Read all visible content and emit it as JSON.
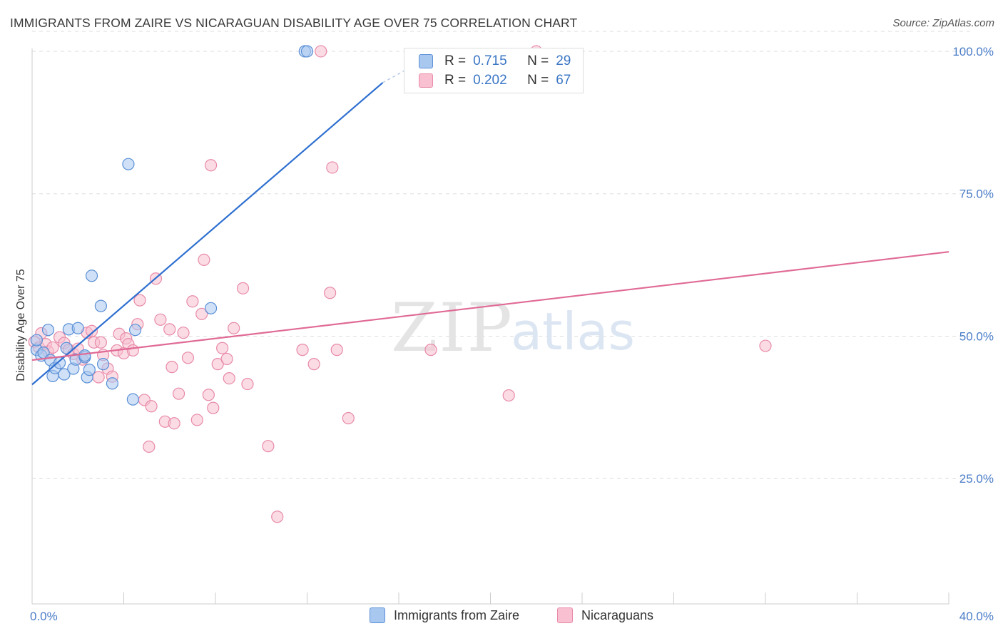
{
  "header": {
    "title": "IMMIGRANTS FROM ZAIRE VS NICARAGUAN DISABILITY AGE OVER 75 CORRELATION CHART",
    "source": "Source: ZipAtlas.com"
  },
  "legend": {
    "r_label": "R =",
    "n_label": "N =",
    "series": [
      {
        "r": "0.715",
        "n": "29"
      },
      {
        "r": "0.202",
        "n": "67"
      }
    ]
  },
  "bottom_legend": [
    "Immigrants from Zaire",
    "Nicaraguans"
  ],
  "watermark": {
    "zip": "ZIP",
    "atlas": "atlas"
  },
  "colors": {
    "zaire_fill": "#a9c8f0",
    "zaire_stroke": "#5a8fd6",
    "zaire_line": "#2e6fd0",
    "nic_fill": "#f8c0d0",
    "nic_stroke": "#e88aa8",
    "nic_line": "#e06a95",
    "tick": "#4a7cc7",
    "grid": "#dddddd"
  },
  "chart_data": {
    "type": "scatter",
    "title": "IMMIGRANTS FROM ZAIRE VS NICARAGUAN DISABILITY AGE OVER 75 CORRELATION CHART",
    "xlabel": "",
    "ylabel": "Disability Age Over 75",
    "xlim": [
      0,
      40
    ],
    "ylim": [
      3,
      104
    ],
    "x_tick_labels": [
      {
        "x": 0,
        "label": "0.0%"
      },
      {
        "x": 40,
        "label": "40.0%"
      }
    ],
    "y_tick_labels": [
      {
        "y": 25,
        "label": "25.0%"
      },
      {
        "y": 50,
        "label": "50.0%"
      },
      {
        "y": 75,
        "label": "75.0%"
      },
      {
        "y": 100,
        "label": "100.0%"
      }
    ],
    "x_minor_ticks": [
      4,
      8,
      12,
      16,
      20,
      24,
      28,
      32,
      36
    ],
    "series": [
      {
        "name": "Immigrants from Zaire",
        "r": 0.715,
        "n": 29,
        "trend": {
          "x": [
            0,
            15.3
          ],
          "y": [
            41.5,
            94.5
          ]
        },
        "trend_dashed": {
          "x": [
            15.3,
            18
          ],
          "y": [
            94.5,
            100.5
          ]
        },
        "points": [
          [
            0.2,
            47.6
          ],
          [
            0.4,
            46.6
          ],
          [
            0.5,
            47.1
          ],
          [
            0.8,
            45.8
          ],
          [
            0.7,
            51.1
          ],
          [
            0.9,
            43.0
          ],
          [
            1.0,
            44.4
          ],
          [
            1.2,
            45.3
          ],
          [
            1.4,
            43.3
          ],
          [
            1.5,
            47.9
          ],
          [
            1.6,
            51.2
          ],
          [
            1.8,
            44.3
          ],
          [
            1.9,
            45.9
          ],
          [
            2.0,
            51.4
          ],
          [
            2.3,
            46.3
          ],
          [
            2.4,
            42.8
          ],
          [
            2.5,
            44.1
          ],
          [
            2.6,
            60.6
          ],
          [
            3.0,
            55.3
          ],
          [
            3.1,
            45.1
          ],
          [
            3.5,
            41.7
          ],
          [
            4.2,
            80.2
          ],
          [
            4.5,
            51.1
          ],
          [
            4.4,
            38.9
          ],
          [
            7.8,
            54.9
          ],
          [
            11.9,
            100.0
          ],
          [
            12.0,
            100.0
          ],
          [
            0.2,
            49.3
          ],
          [
            2.3,
            46.6
          ]
        ]
      },
      {
        "name": "Nicaraguans",
        "r": 0.202,
        "n": 67,
        "trend": {
          "x": [
            0,
            40
          ],
          "y": [
            45.8,
            64.8
          ]
        },
        "points": [
          [
            0.1,
            49.0
          ],
          [
            0.3,
            48.0
          ],
          [
            0.4,
            50.5
          ],
          [
            0.6,
            48.6
          ],
          [
            0.7,
            47.3
          ],
          [
            0.9,
            48.0
          ],
          [
            1.2,
            49.8
          ],
          [
            1.4,
            48.8
          ],
          [
            1.6,
            47.6
          ],
          [
            1.8,
            46.9
          ],
          [
            2.0,
            47.8
          ],
          [
            2.2,
            45.9
          ],
          [
            2.4,
            50.6
          ],
          [
            2.7,
            48.9
          ],
          [
            2.9,
            42.8
          ],
          [
            3.1,
            46.7
          ],
          [
            3.3,
            44.3
          ],
          [
            3.5,
            42.9
          ],
          [
            3.7,
            47.5
          ],
          [
            3.8,
            50.4
          ],
          [
            4.0,
            47.0
          ],
          [
            4.1,
            49.6
          ],
          [
            4.2,
            48.6
          ],
          [
            4.4,
            47.5
          ],
          [
            4.6,
            52.1
          ],
          [
            4.7,
            56.3
          ],
          [
            4.9,
            38.8
          ],
          [
            5.1,
            30.6
          ],
          [
            5.2,
            37.7
          ],
          [
            5.4,
            60.1
          ],
          [
            5.6,
            52.9
          ],
          [
            5.8,
            35.0
          ],
          [
            6.0,
            51.2
          ],
          [
            6.1,
            44.6
          ],
          [
            6.2,
            34.7
          ],
          [
            6.4,
            39.9
          ],
          [
            6.6,
            50.6
          ],
          [
            6.8,
            46.2
          ],
          [
            7.0,
            56.1
          ],
          [
            7.2,
            35.3
          ],
          [
            7.4,
            53.9
          ],
          [
            7.5,
            63.4
          ],
          [
            7.7,
            39.7
          ],
          [
            7.9,
            37.4
          ],
          [
            7.8,
            80.0
          ],
          [
            8.1,
            45.1
          ],
          [
            8.3,
            47.9
          ],
          [
            8.5,
            46.0
          ],
          [
            8.6,
            42.6
          ],
          [
            8.8,
            51.4
          ],
          [
            9.2,
            58.4
          ],
          [
            9.4,
            41.6
          ],
          [
            10.3,
            30.7
          ],
          [
            10.7,
            18.3
          ],
          [
            11.8,
            47.6
          ],
          [
            12.3,
            45.1
          ],
          [
            12.6,
            100.0
          ],
          [
            13.0,
            57.6
          ],
          [
            13.3,
            47.6
          ],
          [
            13.1,
            79.6
          ],
          [
            13.8,
            35.6
          ],
          [
            17.4,
            47.6
          ],
          [
            20.8,
            39.6
          ],
          [
            22.0,
            100.0
          ],
          [
            32.0,
            48.3
          ],
          [
            3.0,
            48.9
          ],
          [
            2.6,
            50.9
          ]
        ]
      }
    ]
  }
}
